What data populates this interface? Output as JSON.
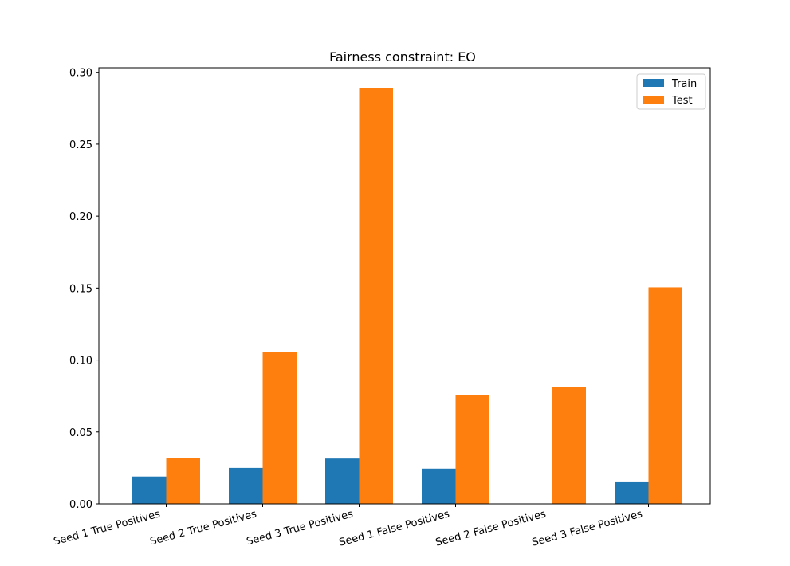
{
  "chart_data": {
    "type": "bar",
    "title": "Fairness constraint: EO",
    "xlabel": "",
    "ylabel": "",
    "categories": [
      "Seed 1 True Positives",
      "Seed 2 True Positives",
      "Seed 3 True Positives",
      "Seed 1 False Positives",
      "Seed 2 False Positives",
      "Seed 3 False Positives"
    ],
    "series": [
      {
        "name": "Train",
        "color": "#1f77b4",
        "values": [
          0.019,
          0.025,
          0.0315,
          0.0245,
          0.0,
          0.015
        ]
      },
      {
        "name": "Test",
        "color": "#ff7f0e",
        "values": [
          0.032,
          0.1055,
          0.289,
          0.0755,
          0.081,
          0.1505
        ]
      }
    ],
    "ylim": [
      0,
      0.3
    ],
    "yticks": [
      "0.00",
      "0.05",
      "0.10",
      "0.15",
      "0.20",
      "0.25",
      "0.30"
    ],
    "grid": false,
    "legend_position": "top-right"
  }
}
